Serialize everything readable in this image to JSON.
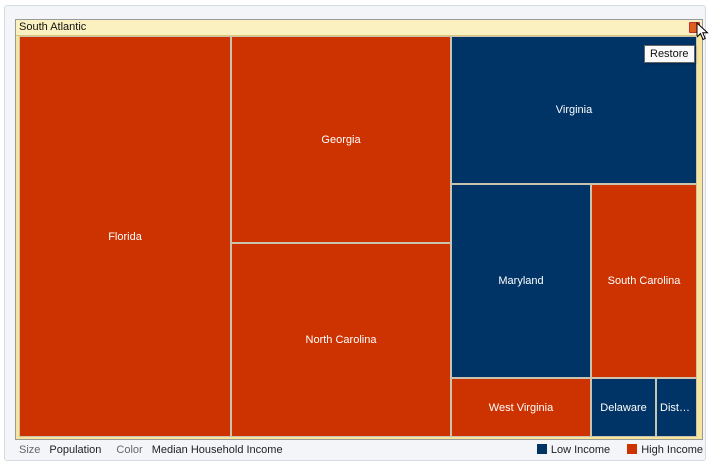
{
  "chart_data": {
    "type": "treemap",
    "title": "South Atlantic",
    "size_measure": "Population",
    "color_measure": "Median Household Income",
    "size_label": "Size",
    "color_label": "Color",
    "legend": [
      {
        "label": "Low Income",
        "color": "#003366"
      },
      {
        "label": "High Income",
        "color": "#cc3300"
      }
    ],
    "items": [
      {
        "label": "Florida",
        "category": "High Income"
      },
      {
        "label": "Georgia",
        "category": "High Income"
      },
      {
        "label": "North Carolina",
        "category": "High Income"
      },
      {
        "label": "Virginia",
        "category": "Low Income"
      },
      {
        "label": "Maryland",
        "category": "Low Income"
      },
      {
        "label": "South Carolina",
        "category": "High Income"
      },
      {
        "label": "West Virginia",
        "category": "High Income"
      },
      {
        "label": "Delaware",
        "category": "Low Income"
      },
      {
        "label": "District of Columbia",
        "category": "Low Income"
      }
    ]
  },
  "tooltip": {
    "text": "Restore"
  }
}
